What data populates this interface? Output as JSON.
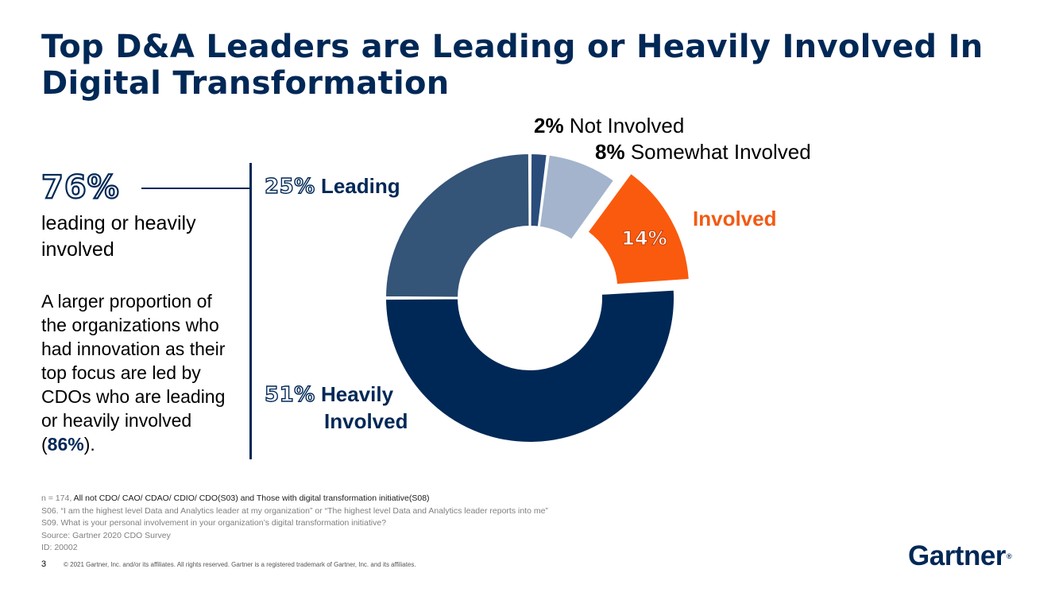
{
  "title": "Top D&A Leaders are Leading or Heavily Involved In Digital Transformation",
  "stat": {
    "value": "76%",
    "description": "leading or heavily involved"
  },
  "body": {
    "text_before": "A larger proportion of the organizations who had innovation as their top focus are led by CDOs who are leading or heavily involved (",
    "highlight": "86%",
    "text_after": ")."
  },
  "chart_data": {
    "type": "pie",
    "subtype": "donut",
    "title": "",
    "slices": [
      {
        "pct": "2%",
        "label": "Not Involved",
        "value": 2,
        "color": "#2a4c7b"
      },
      {
        "pct": "8%",
        "label": "Somewhat Involved",
        "value": 8,
        "color": "#a3b4cc"
      },
      {
        "pct": "14%",
        "label": "Involved",
        "value": 14,
        "color": "#fa5a0d",
        "exploded": true
      },
      {
        "pct": "51%",
        "label": "Heavily Involved",
        "label_line1": "Heavily",
        "label_line2": "Involved",
        "value": 51,
        "color": "#002856"
      },
      {
        "pct": "25%",
        "label": "Leading",
        "value": 25,
        "color": "#345478"
      }
    ]
  },
  "notes": {
    "line1_prefix": "n = 174, ",
    "line1_main": "All not CDO/ CAO/ CDAO/ CDIO/ CDO(S03)  and Those with digital transformation initiative(S08)",
    "line2": "S06. “I am the highest level Data and Analytics leader at my organization” or “The highest level Data and Analytics leader reports into me”",
    "line3": "S09. What is your personal involvement in your organization’s digital transformation initiative?",
    "line4": "Source: Gartner 2020 CDO Survey",
    "line5": "ID: 20002"
  },
  "footer": {
    "page_number": "3",
    "copyright": "© 2021 Gartner, Inc. and/or its affiliates. All rights reserved. Gartner is a registered trademark of Gartner, Inc. and its affiliates.",
    "logo": "Gartner",
    "logo_mark": "®"
  }
}
